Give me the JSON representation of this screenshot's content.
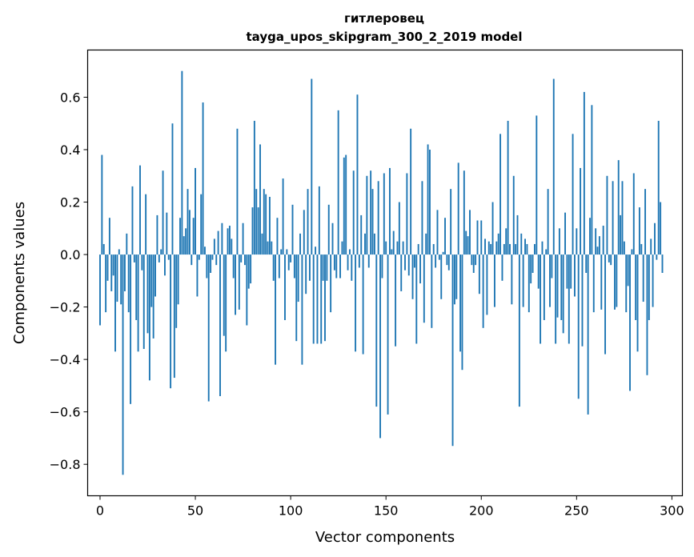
{
  "chart_data": {
    "type": "bar",
    "title": "гитлеровец",
    "subtitle": "tayga_upos_skipgram_300_2_2019 model",
    "xlabel": "Vector components",
    "ylabel": "Components values",
    "xlim": [
      -6.5,
      305.5
    ],
    "ylim": [
      -0.92,
      0.78
    ],
    "xticks": [
      0,
      50,
      100,
      150,
      200,
      250,
      300
    ],
    "xtick_labels": [
      "0",
      "50",
      "100",
      "150",
      "200",
      "250",
      "300"
    ],
    "yticks": [
      -0.8,
      -0.6,
      -0.4,
      -0.2,
      0.0,
      0.2,
      0.4,
      0.6
    ],
    "ytick_labels": [
      "−0.8",
      "−0.6",
      "−0.4",
      "−0.2",
      "0.0",
      "0.2",
      "0.4",
      "0.6"
    ],
    "bar_color": "#1f77b4",
    "grid": false,
    "values": [
      -0.27,
      0.38,
      0.04,
      -0.22,
      -0.1,
      0.14,
      -0.14,
      -0.08,
      -0.37,
      -0.18,
      0.02,
      -0.19,
      -0.84,
      -0.14,
      0.08,
      -0.22,
      -0.57,
      0.26,
      -0.03,
      -0.25,
      -0.37,
      0.34,
      -0.06,
      -0.36,
      0.23,
      -0.3,
      -0.48,
      -0.2,
      -0.32,
      -0.16,
      0.15,
      -0.03,
      0.02,
      0.32,
      -0.08,
      0.16,
      -0.02,
      -0.51,
      0.5,
      -0.47,
      -0.28,
      -0.19,
      0.14,
      0.7,
      0.07,
      0.1,
      0.25,
      0.17,
      -0.04,
      0.14,
      0.33,
      -0.16,
      -0.02,
      0.23,
      0.58,
      0.03,
      -0.09,
      -0.56,
      -0.07,
      -0.02,
      0.06,
      -0.04,
      0.09,
      -0.54,
      0.12,
      -0.31,
      -0.37,
      0.1,
      0.11,
      0.06,
      -0.09,
      -0.23,
      0.48,
      -0.21,
      -0.03,
      0.12,
      -0.04,
      -0.27,
      -0.13,
      -0.11,
      0.18,
      0.51,
      0.25,
      0.18,
      0.42,
      0.08,
      0.25,
      0.23,
      0.05,
      0.22,
      0.05,
      -0.1,
      -0.42,
      0.14,
      -0.09,
      0.02,
      0.29,
      -0.25,
      0.02,
      -0.06,
      -0.03,
      0.19,
      -0.09,
      -0.33,
      -0.18,
      0.08,
      -0.42,
      0.17,
      -0.15,
      0.25,
      -0.1,
      0.67,
      -0.34,
      0.03,
      -0.34,
      0.26,
      -0.34,
      -0.1,
      -0.33,
      -0.1,
      0.19,
      -0.22,
      0.12,
      -0.06,
      -0.09,
      0.55,
      -0.09,
      0.05,
      0.37,
      0.38,
      -0.06,
      0.02,
      -0.1,
      0.32,
      -0.37,
      0.61,
      -0.05,
      0.15,
      -0.38,
      0.08,
      0.3,
      -0.05,
      0.32,
      0.25,
      0.08,
      -0.58,
      0.28,
      -0.7,
      -0.09,
      0.31,
      0.05,
      -0.61,
      0.33,
      0.02,
      0.09,
      -0.35,
      0.05,
      0.2,
      -0.14,
      0.05,
      -0.06,
      0.31,
      -0.08,
      0.48,
      -0.17,
      -0.05,
      -0.34,
      0.04,
      -0.11,
      0.28,
      -0.26,
      0.08,
      0.42,
      0.4,
      -0.28,
      0.04,
      -0.05,
      0.17,
      -0.02,
      -0.17,
      0.01,
      0.14,
      -0.04,
      -0.06,
      0.25,
      -0.73,
      -0.19,
      -0.17,
      0.35,
      -0.37,
      -0.44,
      0.32,
      0.09,
      0.07,
      0.17,
      -0.04,
      -0.07,
      -0.04,
      0.13,
      -0.15,
      0.13,
      -0.28,
      0.06,
      -0.23,
      0.05,
      0.04,
      0.2,
      -0.2,
      0.05,
      0.08,
      0.46,
      -0.1,
      0.04,
      0.1,
      0.51,
      0.04,
      -0.19,
      0.3,
      0.04,
      0.15,
      -0.58,
      0.08,
      -0.2,
      0.06,
      0.04,
      -0.22,
      -0.11,
      -0.07,
      0.04,
      0.53,
      -0.13,
      -0.34,
      0.05,
      -0.25,
      0.02,
      0.25,
      -0.2,
      -0.09,
      0.67,
      -0.34,
      -0.24,
      0.1,
      -0.25,
      -0.3,
      0.16,
      -0.13,
      -0.34,
      -0.13,
      0.46,
      -0.16,
      0.1,
      -0.55,
      0.33,
      -0.35,
      0.62,
      -0.07,
      -0.61,
      0.14,
      0.57,
      -0.22,
      0.1,
      0.03,
      0.07,
      -0.21,
      0.11,
      -0.38,
      0.3,
      -0.03,
      -0.04,
      0.28,
      -0.21,
      -0.2,
      0.36,
      0.15,
      0.28,
      0.05,
      -0.22,
      -0.12,
      -0.52,
      0.02,
      0.31,
      -0.25,
      -0.37,
      0.18,
      0.04,
      -0.18,
      0.25,
      -0.46,
      -0.25,
      0.06,
      -0.2,
      0.12,
      -0.02,
      0.51,
      0.2,
      -0.07
    ]
  }
}
